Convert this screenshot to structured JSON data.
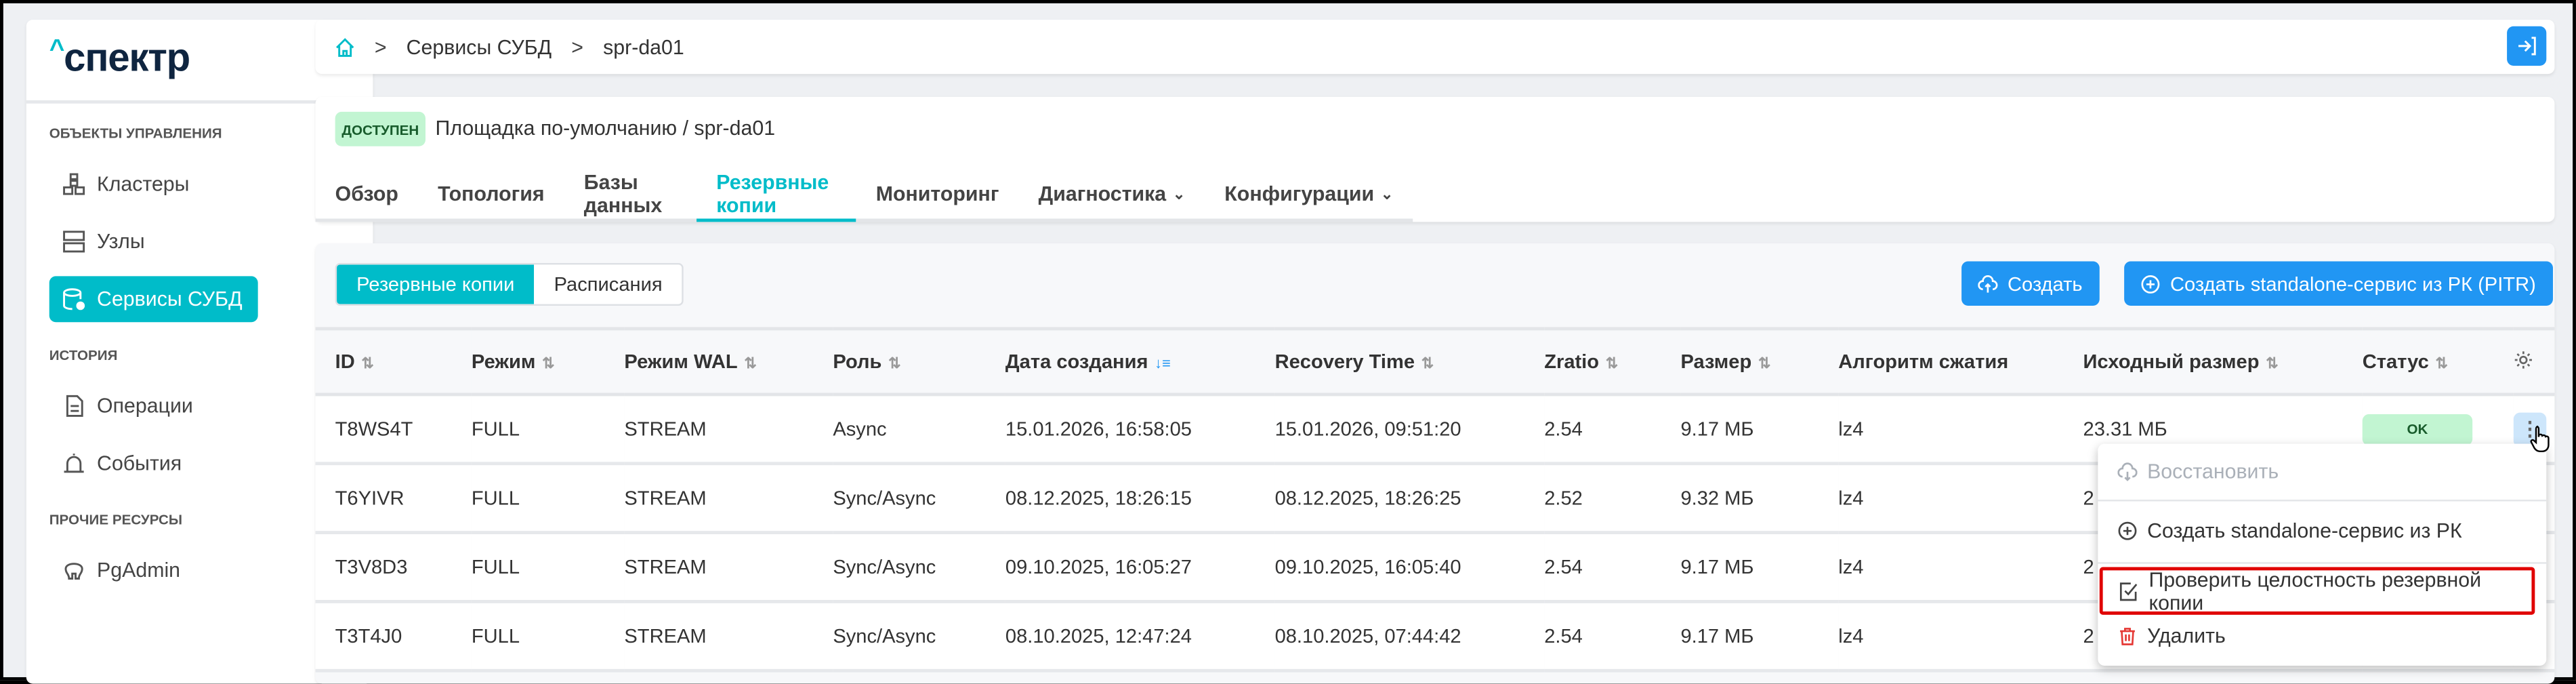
{
  "brand": {
    "logo_text": "спектр",
    "accent": "#00bcc9",
    "primary": "#2196f3"
  },
  "sidebar": {
    "sections": [
      {
        "title": "ОБЪЕКТЫ УПРАВЛЕНИЯ",
        "items": [
          {
            "label": "Кластеры",
            "icon": "clusters-icon"
          },
          {
            "label": "Узлы",
            "icon": "nodes-icon"
          },
          {
            "label": "Сервисы СУБД",
            "icon": "db-services-icon",
            "active": true
          }
        ]
      },
      {
        "title": "ИСТОРИЯ",
        "items": [
          {
            "label": "Операции",
            "icon": "document-icon"
          },
          {
            "label": "События",
            "icon": "alarm-icon"
          }
        ]
      },
      {
        "title": "ПРОЧИЕ РЕСУРСЫ",
        "items": [
          {
            "label": "PgAdmin",
            "icon": "elephant-icon"
          }
        ]
      }
    ]
  },
  "breadcrumb": {
    "items": [
      "Сервисы СУБД",
      "spr-da01"
    ]
  },
  "service": {
    "status": "ДОСТУПЕН",
    "title": "Площадка по-умолчанию /  spr-da01"
  },
  "tabs": [
    {
      "label": "Обзор"
    },
    {
      "label": "Топология"
    },
    {
      "label": "Базы данных"
    },
    {
      "label": "Резервные копии",
      "active": true
    },
    {
      "label": "Мониторинг"
    },
    {
      "label": "Диагностика",
      "dropdown": true
    },
    {
      "label": "Конфигурации",
      "dropdown": true
    }
  ],
  "segment": {
    "options": [
      "Резервные копии",
      "Расписания"
    ],
    "selected": "Резервные копии"
  },
  "actions": {
    "create": "Создать",
    "create_pitr": "Создать standalone-сервис из РК (PITR)"
  },
  "table": {
    "columns": [
      "ID",
      "Режим",
      "Режим WAL",
      "Роль",
      "Дата создания",
      "Recovery Time",
      "Zratio",
      "Размер",
      "Алгоритм сжатия",
      "Исходный размер",
      "Статус"
    ],
    "sorted_column": "Дата создания",
    "rows": [
      [
        "T8WS4T",
        "FULL",
        "STREAM",
        "Async",
        "15.01.2026, 16:58:05",
        "15.01.2026, 09:51:20",
        "2.54",
        "9.17 МБ",
        "lz4",
        "23.31 МБ",
        "OK"
      ],
      [
        "T6YIVR",
        "FULL",
        "STREAM",
        "Sync/Async",
        "08.12.2025, 18:26:15",
        "08.12.2025, 18:26:25",
        "2.52",
        "9.32 МБ",
        "lz4",
        "2",
        ""
      ],
      [
        "T3V8D3",
        "FULL",
        "STREAM",
        "Sync/Async",
        "09.10.2025, 16:05:27",
        "09.10.2025, 16:05:40",
        "2.54",
        "9.17 МБ",
        "lz4",
        "2",
        ""
      ],
      [
        "T3T4J0",
        "FULL",
        "STREAM",
        "Sync/Async",
        "08.10.2025, 12:47:24",
        "08.10.2025, 07:44:42",
        "2.54",
        "9.17 МБ",
        "lz4",
        "2",
        ""
      ]
    ]
  },
  "context_menu": {
    "items": [
      {
        "label": "Восстановить",
        "icon": "cloud-download-icon",
        "disabled": true
      },
      {
        "label": "Создать standalone-сервис из РК",
        "icon": "plus-circle-icon"
      },
      {
        "label": "Проверить целостность резервной копии",
        "icon": "checkbox-icon",
        "highlighted": true
      },
      {
        "label": "Удалить",
        "icon": "trash-icon",
        "color": "#e53935"
      }
    ]
  }
}
